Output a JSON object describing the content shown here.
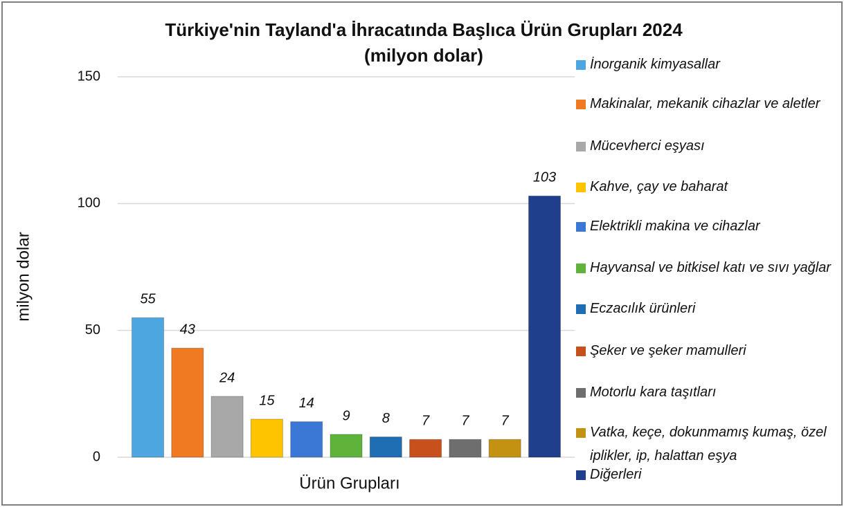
{
  "chart_data": {
    "type": "bar",
    "title": "Türkiye'nin Tayland'a İhracatında Başlıca Ürün Grupları 2024",
    "subtitle": "(milyon dolar)",
    "y_label": "milyon dolar",
    "x_label": "Ürün Grupları",
    "categories": [
      "İnorganik kimyasallar",
      "Makinalar, mekanik cihazlar ve aletler",
      "Mücevherci eşyası",
      "Kahve, çay ve baharat",
      "Elektrikli makina ve cihazlar",
      "Hayvansal ve bitkisel katı ve sıvı yağlar",
      "Eczacılık ürünleri",
      "Şeker ve şeker mamulleri",
      "Motorlu kara taşıtları",
      "Vatka, keçe, dokunmamış kumaş, özel iplikler, ip, halattan eşya",
      "Diğerleri"
    ],
    "values": [
      55,
      43,
      24,
      15,
      14,
      9,
      8,
      7,
      7,
      7,
      103
    ],
    "colors": [
      "#4ea6e0",
      "#f07a22",
      "#a8a8a8",
      "#ffc400",
      "#3b78d6",
      "#5fb23a",
      "#1f6db3",
      "#c8501c",
      "#6e6e6e",
      "#c39212",
      "#1f3f8c"
    ],
    "ylim": [
      0,
      150
    ],
    "yticks": [
      0,
      50,
      100,
      150
    ],
    "grid": true,
    "legend": "right"
  }
}
